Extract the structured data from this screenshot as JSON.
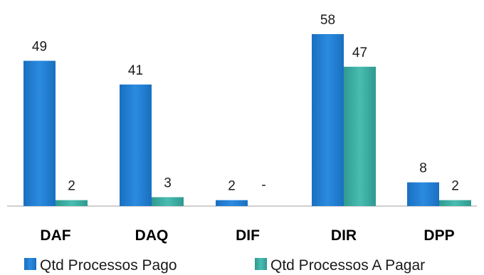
{
  "chart_data": {
    "type": "bar",
    "categories": [
      "DAF",
      "DAQ",
      "DIF",
      "DIR",
      "DPP"
    ],
    "series": [
      {
        "name": "Qtd Processos Pago",
        "values": [
          49,
          41,
          2,
          58,
          8
        ],
        "labels": [
          "49",
          "41",
          "2",
          "58",
          "8"
        ],
        "color": "#1f7ed1"
      },
      {
        "name": "Qtd Processos A Pagar",
        "values": [
          2,
          3,
          0,
          47,
          2
        ],
        "labels": [
          "2",
          "3",
          "-",
          "47",
          "2"
        ],
        "color": "#3aa99f"
      }
    ],
    "ylim": [
      0,
      58
    ],
    "grid": false,
    "legend_position": "bottom"
  }
}
